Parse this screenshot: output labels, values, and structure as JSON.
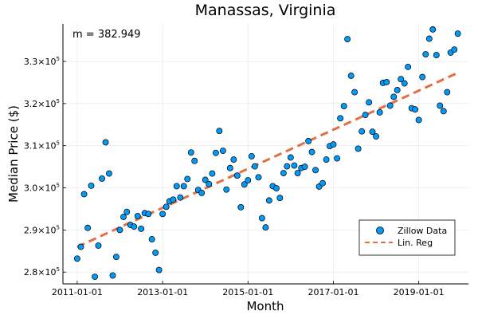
{
  "chart_data": {
    "type": "scatter",
    "title": "Manassas, Virginia",
    "xlabel": "Month",
    "ylabel": "Median Price ($)",
    "annotation": "m = 382.949",
    "x_ticks": [
      "2011-01-01",
      "2013-01-01",
      "2015-01-01",
      "2017-01-01",
      "2019-01-01"
    ],
    "y_ticks": [
      {
        "value": 280000,
        "mantissa": "2.8",
        "exponent": "5"
      },
      {
        "value": 290000,
        "mantissa": "2.9",
        "exponent": "5"
      },
      {
        "value": 300000,
        "mantissa": "3.0",
        "exponent": "5"
      },
      {
        "value": 310000,
        "mantissa": "3.1",
        "exponent": "5"
      },
      {
        "value": 320000,
        "mantissa": "3.2",
        "exponent": "5"
      },
      {
        "value": 330000,
        "mantissa": "3.3",
        "exponent": "5"
      }
    ],
    "tick_base": "10",
    "xlim": [
      "2010-09-01",
      "2020-03-01"
    ],
    "ylim": [
      277200,
      338900
    ],
    "grid": true,
    "legend_position": "bottom-right",
    "series": [
      {
        "name": "Zillow Data",
        "kind": "scatter",
        "color": "#009AF9",
        "points": [
          [
            "2011-01-01",
            283200
          ],
          [
            "2011-02-01",
            286000
          ],
          [
            "2011-03-01",
            298500
          ],
          [
            "2011-04-01",
            290500
          ],
          [
            "2011-05-01",
            300500
          ],
          [
            "2011-06-01",
            278900
          ],
          [
            "2011-07-01",
            286300
          ],
          [
            "2011-08-01",
            302200
          ],
          [
            "2011-09-01",
            310800
          ],
          [
            "2011-10-01",
            303400
          ],
          [
            "2011-11-01",
            279200
          ],
          [
            "2011-12-01",
            283600
          ],
          [
            "2012-01-01",
            290000
          ],
          [
            "2012-02-01",
            293100
          ],
          [
            "2012-03-01",
            294300
          ],
          [
            "2012-04-01",
            291200
          ],
          [
            "2012-05-01",
            290800
          ],
          [
            "2012-06-01",
            293300
          ],
          [
            "2012-07-01",
            290300
          ],
          [
            "2012-08-01",
            294000
          ],
          [
            "2012-09-01",
            293800
          ],
          [
            "2012-10-01",
            287800
          ],
          [
            "2012-11-01",
            284600
          ],
          [
            "2012-12-01",
            280500
          ],
          [
            "2013-01-01",
            293800
          ],
          [
            "2013-02-01",
            295500
          ],
          [
            "2013-03-01",
            296800
          ],
          [
            "2013-04-01",
            297200
          ],
          [
            "2013-05-01",
            300400
          ],
          [
            "2013-06-01",
            297700
          ],
          [
            "2013-07-01",
            300400
          ],
          [
            "2013-08-01",
            302100
          ],
          [
            "2013-09-01",
            308400
          ],
          [
            "2013-10-01",
            306400
          ],
          [
            "2013-11-01",
            299500
          ],
          [
            "2013-12-01",
            298800
          ],
          [
            "2014-01-01",
            301900
          ],
          [
            "2014-02-01",
            300900
          ],
          [
            "2014-03-01",
            303400
          ],
          [
            "2014-04-01",
            308300
          ],
          [
            "2014-05-01",
            313500
          ],
          [
            "2014-06-01",
            308800
          ],
          [
            "2014-07-01",
            299600
          ],
          [
            "2014-08-01",
            304700
          ],
          [
            "2014-09-01",
            306700
          ],
          [
            "2014-10-01",
            302900
          ],
          [
            "2014-11-01",
            295400
          ],
          [
            "2014-12-01",
            300800
          ],
          [
            "2015-01-01",
            301800
          ],
          [
            "2015-02-01",
            307500
          ],
          [
            "2015-03-01",
            305100
          ],
          [
            "2015-04-01",
            302500
          ],
          [
            "2015-05-01",
            292800
          ],
          [
            "2015-06-01",
            290600
          ],
          [
            "2015-07-01",
            297000
          ],
          [
            "2015-08-01",
            300400
          ],
          [
            "2015-09-01",
            299900
          ],
          [
            "2015-10-01",
            297600
          ],
          [
            "2015-11-01",
            303500
          ],
          [
            "2015-12-01",
            305100
          ],
          [
            "2016-01-01",
            307200
          ],
          [
            "2016-02-01",
            305300
          ],
          [
            "2016-03-01",
            303500
          ],
          [
            "2016-04-01",
            304700
          ],
          [
            "2016-05-01",
            305000
          ],
          [
            "2016-06-01",
            311100
          ],
          [
            "2016-07-01",
            308500
          ],
          [
            "2016-08-01",
            304200
          ],
          [
            "2016-09-01",
            300300
          ],
          [
            "2016-10-01",
            301100
          ],
          [
            "2016-11-01",
            306700
          ],
          [
            "2016-12-01",
            309900
          ],
          [
            "2017-01-01",
            310300
          ],
          [
            "2017-02-01",
            307000
          ],
          [
            "2017-03-01",
            316500
          ],
          [
            "2017-04-01",
            319400
          ],
          [
            "2017-05-01",
            335300
          ],
          [
            "2017-06-01",
            326600
          ],
          [
            "2017-07-01",
            322700
          ],
          [
            "2017-08-01",
            309300
          ],
          [
            "2017-09-01",
            313400
          ],
          [
            "2017-10-01",
            317300
          ],
          [
            "2017-11-01",
            320300
          ],
          [
            "2017-12-01",
            313300
          ],
          [
            "2018-01-01",
            312200
          ],
          [
            "2018-02-01",
            317900
          ],
          [
            "2018-03-01",
            324900
          ],
          [
            "2018-04-01",
            325100
          ],
          [
            "2018-05-01",
            319500
          ],
          [
            "2018-06-01",
            321600
          ],
          [
            "2018-07-01",
            323200
          ],
          [
            "2018-08-01",
            325800
          ],
          [
            "2018-09-01",
            324800
          ],
          [
            "2018-10-01",
            328700
          ],
          [
            "2018-11-01",
            318900
          ],
          [
            "2018-12-01",
            318600
          ],
          [
            "2019-01-01",
            316100
          ],
          [
            "2019-02-01",
            326300
          ],
          [
            "2019-03-01",
            331700
          ],
          [
            "2019-04-01",
            335400
          ],
          [
            "2019-05-01",
            337600
          ],
          [
            "2019-06-01",
            331500
          ],
          [
            "2019-07-01",
            319500
          ],
          [
            "2019-08-01",
            318200
          ],
          [
            "2019-09-01",
            322700
          ],
          [
            "2019-10-01",
            332100
          ],
          [
            "2019-11-01",
            332800
          ],
          [
            "2019-12-01",
            336600
          ]
        ]
      },
      {
        "name": "Lin. Reg",
        "kind": "line",
        "style": "dashed",
        "color": "#E26F46",
        "points": [
          [
            "2011-01-01",
            286000
          ],
          [
            "2019-12-01",
            327300
          ]
        ]
      }
    ]
  }
}
